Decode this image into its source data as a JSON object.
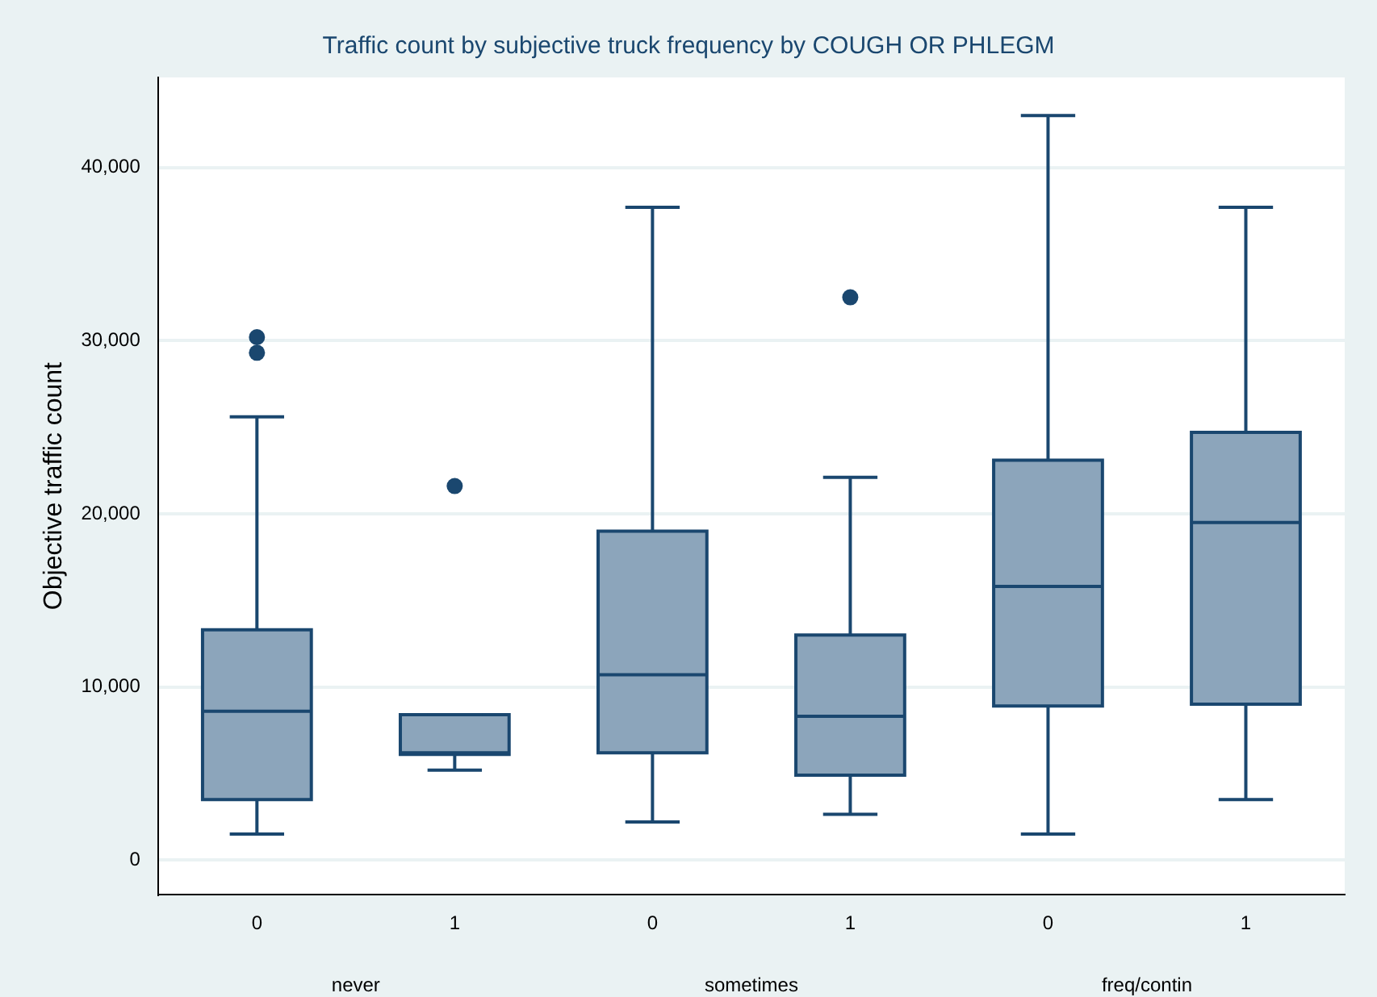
{
  "chart_data": {
    "type": "box",
    "title": "Traffic count by subjective truck frequency by COUGH OR PHLEGM",
    "ylabel": "Objective traffic count",
    "categories": [
      "0",
      "1",
      "0",
      "1",
      "0",
      "1"
    ],
    "boxes": [
      {
        "low": 1500,
        "q1": 3500,
        "median": 8600,
        "q3": 13300,
        "high": 25600,
        "outliers": [
          29300,
          30200
        ]
      },
      {
        "low": 5200,
        "q1": 6100,
        "median": 6200,
        "q3": 8400,
        "high": 8400,
        "outliers": [
          21600
        ]
      },
      {
        "low": 2200,
        "q1": 6200,
        "median": 10700,
        "q3": 19000,
        "high": 37700
      },
      {
        "low": 2650,
        "q1": 4900,
        "median": 8300,
        "q3": 13000,
        "high": 22100,
        "outliers": [
          32500
        ]
      },
      {
        "low": 1500,
        "q1": 8900,
        "median": 15800,
        "q3": 23100,
        "high": 43000
      },
      {
        "low": 3500,
        "q1": 9000,
        "median": 19500,
        "q3": 24700,
        "high": 37700
      }
    ],
    "color": "#8ca5bb",
    "ylim": [
      -2000,
      45200
    ],
    "yticks": [
      0,
      {
        "value": 10000,
        "label": "10,000"
      },
      {
        "value": 20000,
        "label": "20,000"
      },
      {
        "value": 30000,
        "label": "30,000"
      },
      {
        "value": 40000,
        "label": "40,000"
      }
    ],
    "grid": "y",
    "annotations": [
      "never",
      "sometimes",
      "freq/contin"
    ]
  }
}
